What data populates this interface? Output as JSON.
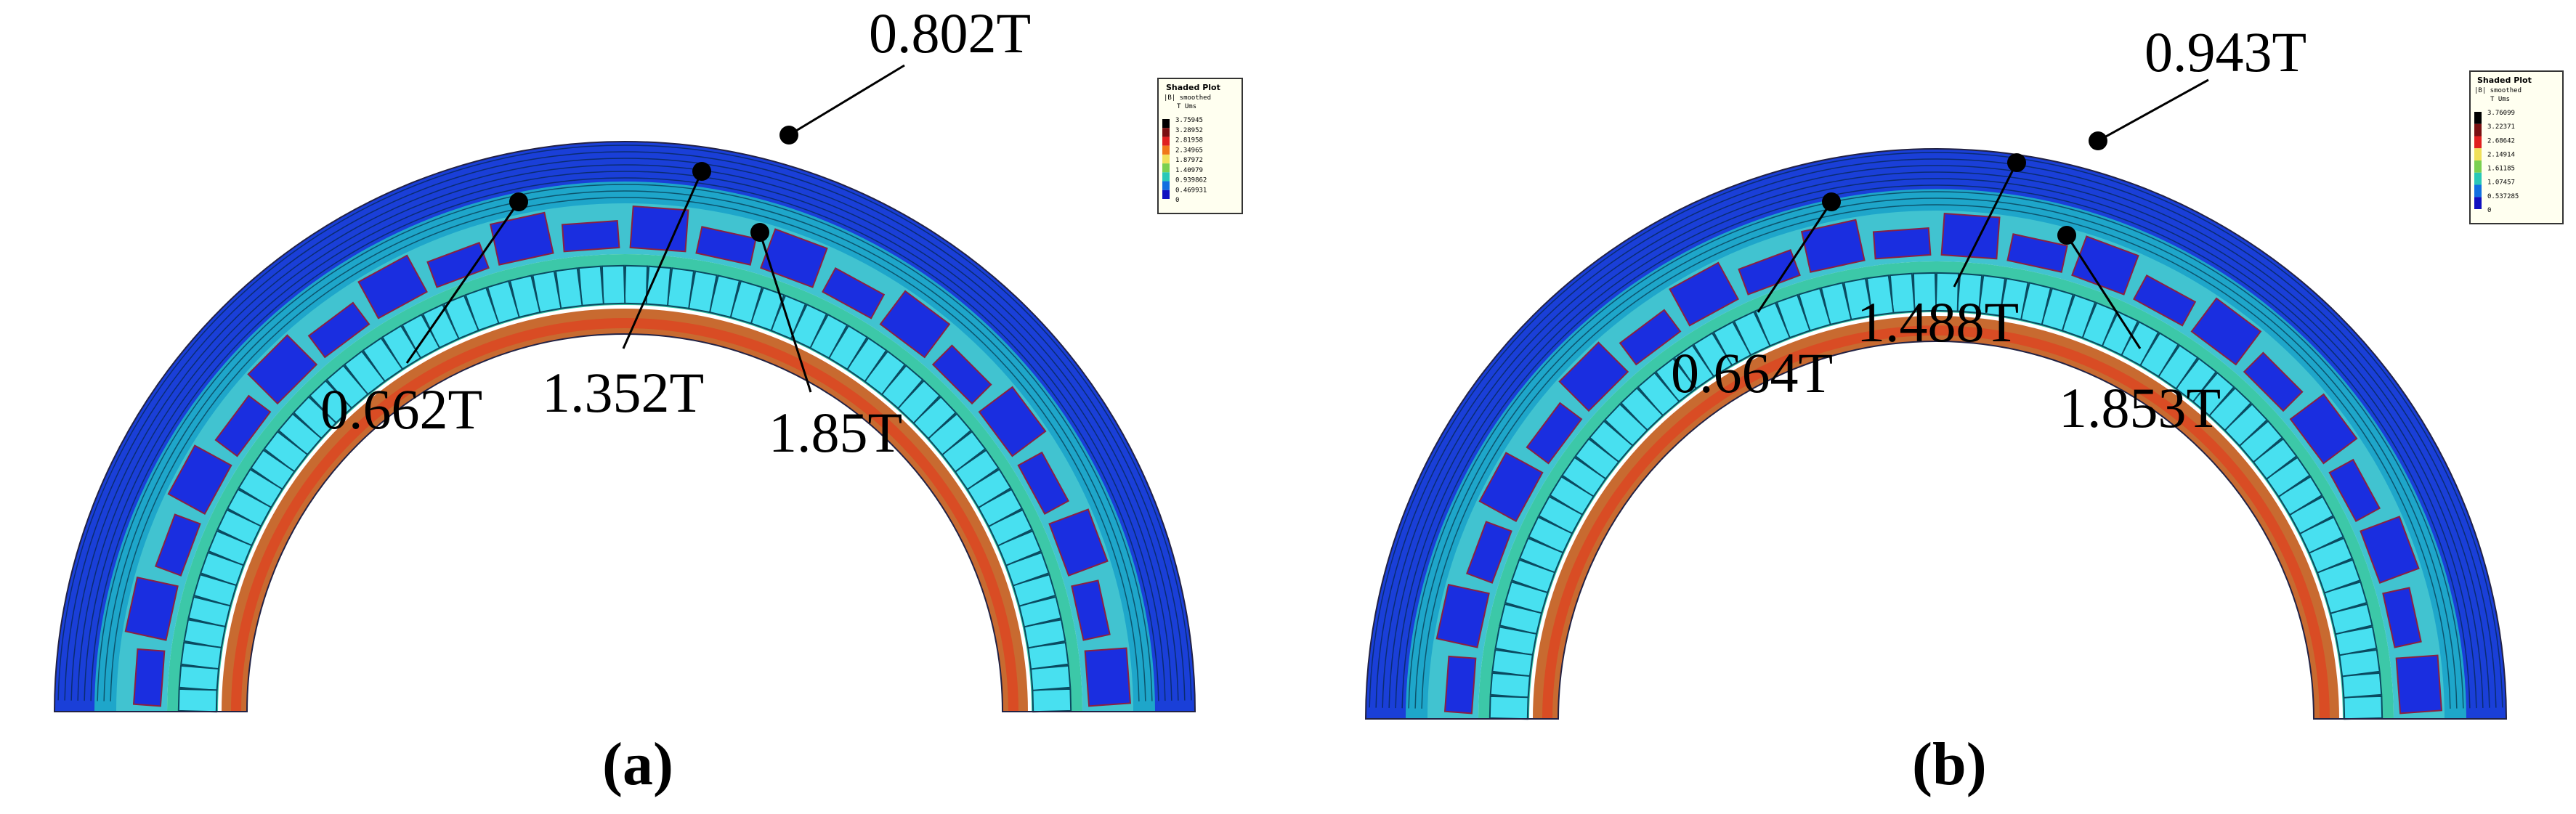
{
  "panels": [
    {
      "id": "a",
      "caption": "(a)",
      "legend": {
        "title": "Shaded Plot",
        "subtitle": "|B| smoothed",
        "units": "T  Ums",
        "values": [
          "3.75945",
          "3.28952",
          "2.81958",
          "2.34965",
          "1.87972",
          "1.40979",
          "0.939862",
          "0.469931",
          "0"
        ],
        "colors": [
          "#000000",
          "#7a1010",
          "#e0201e",
          "#f07818",
          "#f0e05a",
          "#7ad050",
          "#28c8b8",
          "#1070e0",
          "#1010c0"
        ]
      },
      "points": [
        {
          "label": "0.802T"
        },
        {
          "label": "0.662T"
        },
        {
          "label": "1.352T"
        },
        {
          "label": "1.85T"
        }
      ]
    },
    {
      "id": "b",
      "caption": "(b)",
      "legend": {
        "title": "Shaded Plot",
        "subtitle": "|B| smoothed",
        "units": "T  Ums",
        "values": [
          "3.76099",
          "3.22371",
          "2.68642",
          "2.14914",
          "1.61185",
          "1.07457",
          "0.537285",
          "0"
        ],
        "colors": [
          "#000000",
          "#7a1010",
          "#e0201e",
          "#f0e05a",
          "#7ad050",
          "#28c8b8",
          "#1070e0",
          "#1010c0"
        ]
      },
      "points": [
        {
          "label": "0.943T"
        },
        {
          "label": "0.664T"
        },
        {
          "label": "1.488T"
        },
        {
          "label": "1.853T"
        }
      ]
    }
  ]
}
